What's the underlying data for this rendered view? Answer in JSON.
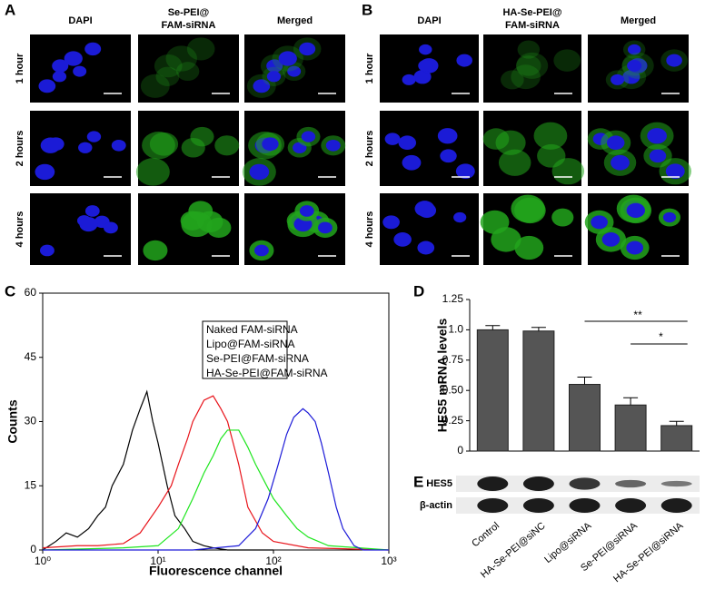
{
  "panel_a": {
    "label": "A",
    "columns": [
      [
        "DAPI"
      ],
      [
        "Se-PEI@",
        "FAM-siRNA"
      ],
      [
        "Merged"
      ]
    ],
    "rows": [
      "1 hour",
      "2 hours",
      "4 hours"
    ]
  },
  "panel_b": {
    "label": "B",
    "columns": [
      [
        "DAPI"
      ],
      [
        "HA-Se-PEI@",
        "FAM-siRNA"
      ],
      [
        "Merged"
      ]
    ],
    "rows": [
      "1 hour",
      "2 hours",
      "4 hours"
    ]
  },
  "panel_e": {
    "label": "E",
    "rows": [
      "HES5",
      "β-actin"
    ]
  },
  "chart_data": [
    {
      "type": "line",
      "label": "C",
      "xlabel": "Fluorescence channel",
      "ylabel": "Counts",
      "log_x": true,
      "xlim": [
        1,
        1000
      ],
      "xticks": [
        {
          "value": 1,
          "label": "10⁰"
        },
        {
          "value": 10,
          "label": "10¹"
        },
        {
          "value": 100,
          "label": "10²"
        },
        {
          "value": 1000,
          "label": "10³"
        }
      ],
      "ylim": [
        0,
        60
      ],
      "yticks": [
        0,
        15,
        30,
        45,
        60
      ],
      "series": [
        {
          "name": "Naked FAM-siRNA",
          "color": "#000000",
          "x": [
            1,
            1.3,
            1.6,
            2,
            2.5,
            3,
            3.5,
            4,
            5,
            6,
            7,
            8,
            9,
            10,
            12,
            14,
            17,
            20,
            25,
            30,
            40,
            60,
            100
          ],
          "values": [
            0,
            2,
            4,
            3,
            5,
            8,
            10,
            15,
            20,
            28,
            33,
            37,
            30,
            25,
            15,
            8,
            5,
            2,
            1,
            0.5,
            0,
            0,
            0
          ]
        },
        {
          "name": "Lipo@FAM-siRNA",
          "color": "#e8141b",
          "x": [
            1,
            2,
            3,
            5,
            7,
            10,
            13,
            15,
            18,
            20,
            25,
            30,
            35,
            40,
            50,
            60,
            80,
            100,
            200,
            1000
          ],
          "values": [
            0.5,
            1,
            1,
            1.5,
            4,
            10,
            15,
            20,
            26,
            30,
            35,
            36,
            33,
            30,
            20,
            10,
            4,
            2,
            0.5,
            0
          ]
        },
        {
          "name": "Se-PEI@FAM-siRNA",
          "color": "#1ee61e",
          "x": [
            1,
            5,
            10,
            15,
            20,
            25,
            30,
            35,
            40,
            50,
            60,
            70,
            80,
            100,
            130,
            160,
            200,
            300,
            1000
          ],
          "values": [
            0,
            0.5,
            1,
            5,
            12,
            18,
            22,
            26,
            28,
            28,
            24,
            20,
            17,
            12,
            8,
            5,
            3,
            1,
            0
          ]
        },
        {
          "name": "HA-Se-PEI@FAM-siRNA",
          "color": "#1d1bd8",
          "x": [
            1,
            20,
            50,
            70,
            90,
            110,
            130,
            150,
            180,
            200,
            230,
            260,
            300,
            350,
            400,
            500,
            600,
            1000
          ],
          "values": [
            0,
            0,
            1,
            5,
            12,
            20,
            27,
            31,
            33,
            32,
            30,
            25,
            18,
            10,
            5,
            1,
            0,
            0
          ]
        }
      ]
    },
    {
      "type": "bar",
      "label": "D",
      "ylabel": "HES5 mRNA levels",
      "color": "#555555",
      "categories": [
        "Control",
        "HA-Se-PEI@siNC",
        "Lipo@siRNA",
        "Se-PEI@siRNA",
        "HA-Se-PEI@siRNA"
      ],
      "values": [
        1.0,
        0.99,
        0.55,
        0.38,
        0.21
      ],
      "errors": [
        0.035,
        0.03,
        0.06,
        0.06,
        0.035
      ],
      "ylim": [
        0,
        1.25
      ],
      "yticks": [
        0,
        0.25,
        {
          "value": 0.5,
          "label": "0.50"
        },
        0.75,
        {
          "value": 1,
          "label": "1.0"
        },
        1.25
      ],
      "annotations": [
        "**",
        "*"
      ]
    }
  ]
}
